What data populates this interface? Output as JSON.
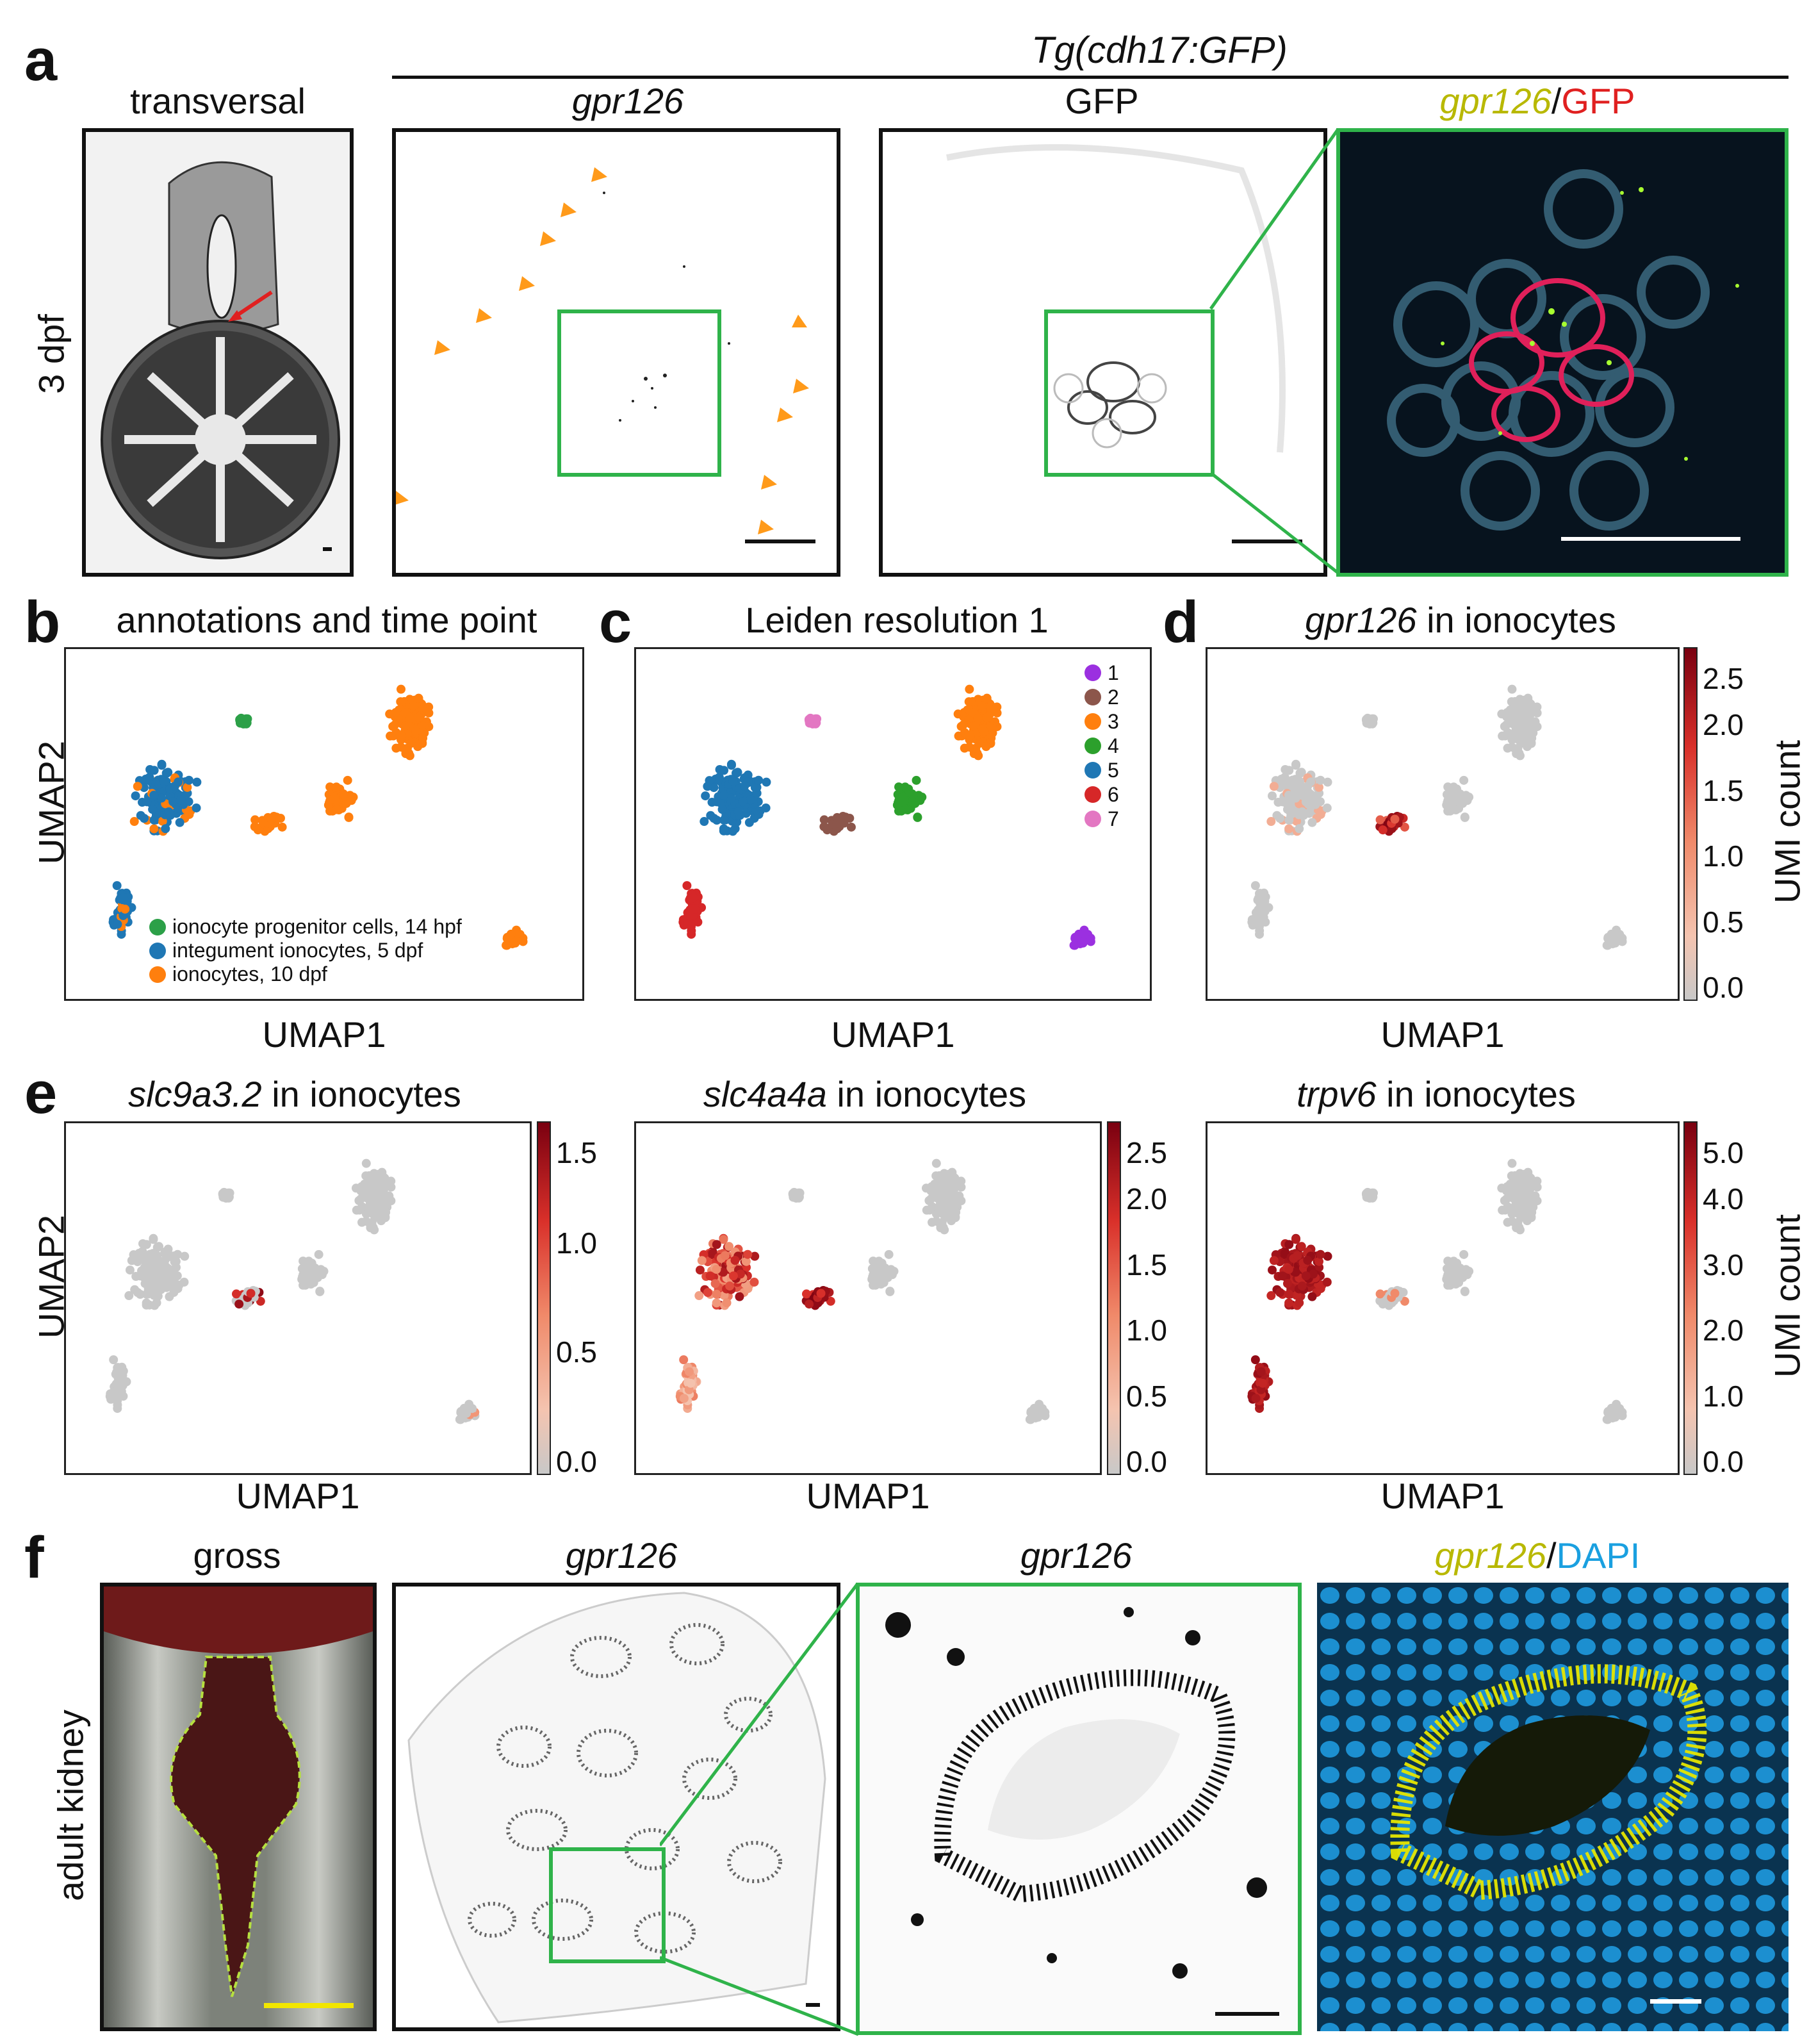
{
  "panel_letters": {
    "a": "a",
    "b": "b",
    "c": "c",
    "d": "d",
    "e": "e",
    "f": "f"
  },
  "a": {
    "group_title": "Tg(cdh17:GFP)",
    "titles": {
      "transversal": "transversal",
      "gpr126": "gpr126",
      "gfp": "GFP",
      "merge_gene": "gpr126",
      "merge_sep": "/",
      "merge_gfp": "GFP"
    },
    "side_label": "3 dpf"
  },
  "b": {
    "title": "annotations and time point",
    "xlabel": "UMAP1",
    "ylabel": "UMAP2",
    "legend": [
      {
        "label": "ionocyte progenitor cells, 14 hpf",
        "color": "#2ca048"
      },
      {
        "label": "integument ionocytes, 5 dpf",
        "color": "#1f77b4"
      },
      {
        "label": "ionocytes, 10 dpf",
        "color": "#ff7f0e"
      }
    ]
  },
  "c": {
    "title": "Leiden resolution 1",
    "xlabel": "UMAP1",
    "legend": [
      {
        "label": "1",
        "color": "#9b30e0"
      },
      {
        "label": "2",
        "color": "#8c564b"
      },
      {
        "label": "3",
        "color": "#ff7f0e"
      },
      {
        "label": "4",
        "color": "#2ca02c"
      },
      {
        "label": "5",
        "color": "#1f77b4"
      },
      {
        "label": "6",
        "color": "#d62728"
      },
      {
        "label": "7",
        "color": "#e377c2"
      }
    ]
  },
  "d": {
    "title_gene": "gpr126",
    "title_rest": " in ionocytes",
    "xlabel": "UMAP1",
    "cbar_label": "UMI count",
    "cbar_ticks": [
      "2.5",
      "2.0",
      "1.5",
      "1.0",
      "0.5",
      "0.0"
    ]
  },
  "e": {
    "ylabel": "UMAP2",
    "cbar_label": "UMI count",
    "plots": [
      {
        "gene": "slc9a3.2",
        "rest": " in ionocytes",
        "xlabel": "UMAP1",
        "cbar_ticks": [
          "1.5",
          "1.0",
          "0.5",
          "0.0"
        ]
      },
      {
        "gene": "slc4a4a",
        "rest": " in ionocytes",
        "xlabel": "UMAP1",
        "cbar_ticks": [
          "2.5",
          "2.0",
          "1.5",
          "1.0",
          "0.5",
          "0.0"
        ]
      },
      {
        "gene": "trpv6",
        "rest": " in ionocytes",
        "xlabel": "UMAP1",
        "cbar_ticks": [
          "5.0",
          "4.0",
          "3.0",
          "2.0",
          "1.0",
          "0.0"
        ]
      }
    ]
  },
  "f": {
    "titles": {
      "gross": "gross",
      "gpr126_a": "gpr126",
      "gpr126_b": "gpr126",
      "merge_gene": "gpr126",
      "merge_sep": "/",
      "merge_dapi": "DAPI"
    },
    "side_label": "adult kidney"
  },
  "colors": {
    "green_box": "#2fb34a",
    "orange": "#ff7f0e",
    "blue": "#1f77b4",
    "green": "#2ca048",
    "dapi": "#1aa0e0",
    "gene_yellow": "#b8b800",
    "gfp_red": "#e02020"
  }
}
